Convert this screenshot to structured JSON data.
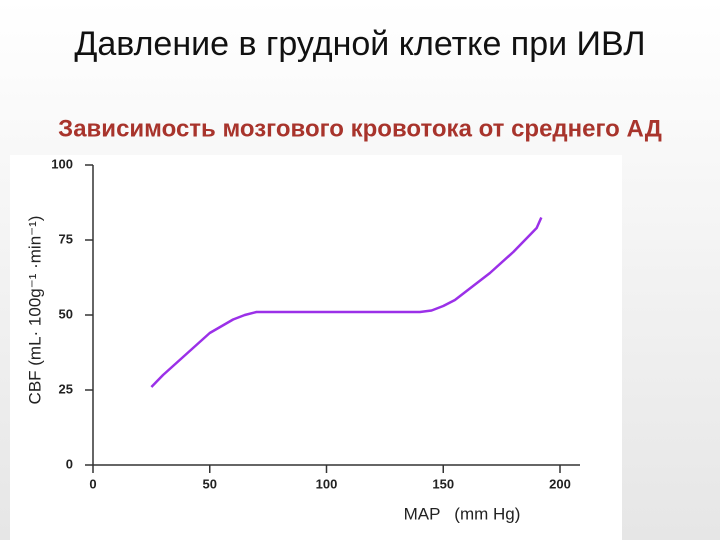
{
  "title": "Давление в грудной клетке при ИВЛ",
  "subtitle": "Зависимость мозгового кровотока от среднего АД",
  "chart_data": {
    "type": "line",
    "x_label": "MAP   (mm Hg)",
    "y_label": "CBF (mL· 100g⁻¹ ·min⁻¹)",
    "x": [
      25,
      30,
      40,
      50,
      60,
      65,
      70,
      80,
      100,
      120,
      140,
      145,
      150,
      155,
      160,
      170,
      180,
      190,
      192
    ],
    "series": [
      {
        "name": "CBF",
        "color": "#9b30e8",
        "values": [
          26,
          30,
          37,
          44,
          48.5,
          50,
          51,
          51,
          51,
          51,
          51,
          51.5,
          53,
          55,
          58,
          64,
          71,
          79,
          82.5
        ]
      }
    ],
    "xlim": [
      0,
      200
    ],
    "xticks": [
      0,
      50,
      100,
      150,
      200
    ],
    "ylim": [
      0,
      100
    ],
    "yticks": [
      0,
      25,
      50,
      75,
      100
    ]
  }
}
